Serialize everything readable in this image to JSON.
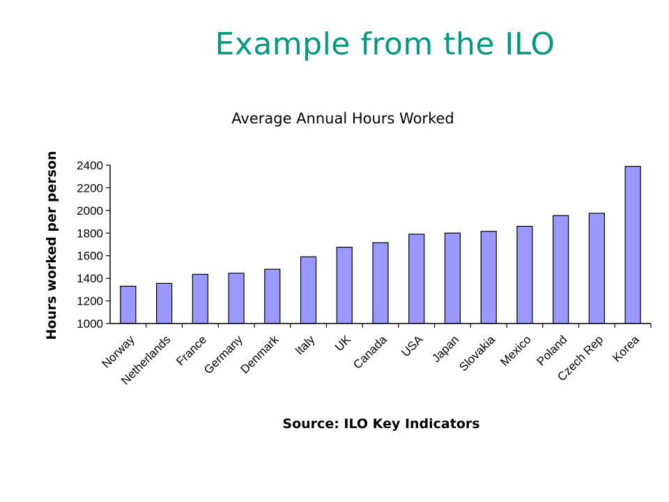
{
  "slide": {
    "title": "Example from the ILO",
    "title_color": "#009980"
  },
  "chart_data": {
    "type": "bar",
    "title": "Average Annual Hours Worked",
    "ylabel": "Hours worked per person",
    "xlabel": "",
    "source": "Source: ILO Key Indicators",
    "categories": [
      "Norway",
      "Netherlands",
      "France",
      "Germany",
      "Denmark",
      "Italy",
      "UK",
      "Canada",
      "USA",
      "Japan",
      "Slovakia",
      "Mexico",
      "Poland",
      "Czech Rep",
      "Korea"
    ],
    "values": [
      1330,
      1355,
      1435,
      1445,
      1480,
      1590,
      1675,
      1715,
      1790,
      1800,
      1815,
      1860,
      1955,
      1975,
      2390
    ],
    "ylim": [
      1000,
      2400
    ],
    "yticks": [
      1000,
      1200,
      1400,
      1600,
      1800,
      2000,
      2200,
      2400
    ],
    "bar_color": "#9999FF",
    "bar_edge_color": "#000000",
    "grid": false,
    "legend": "none"
  }
}
